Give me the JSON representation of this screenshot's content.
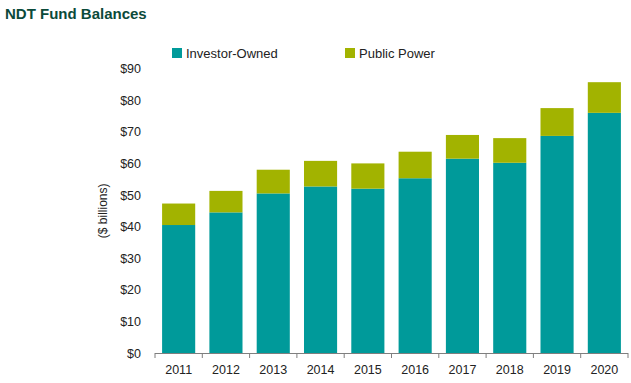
{
  "chart_data": {
    "type": "bar",
    "title": "NDT Fund Balances",
    "y_label": "($ billions)",
    "stacked": true,
    "legend": "top",
    "grid": false,
    "categories": [
      "2011",
      "2012",
      "2013",
      "2014",
      "2015",
      "2016",
      "2017",
      "2018",
      "2019",
      "2020"
    ],
    "series": [
      {
        "name": "Investor-Owned",
        "color": "#009a9a",
        "values": [
          40.5,
          44.5,
          50.5,
          52.7,
          52,
          55.3,
          61.5,
          60.2,
          68.7,
          76
        ]
      },
      {
        "name": "Public Power",
        "color": "#a2b300",
        "values": [
          6.8,
          6.8,
          7.5,
          8.1,
          8,
          8.4,
          7.5,
          7.8,
          8.8,
          9.7
        ]
      }
    ],
    "ylim": [
      0,
      90
    ],
    "yticks": [
      {
        "value": 0,
        "label": "$0"
      },
      {
        "value": 10,
        "label": "$10"
      },
      {
        "value": 20,
        "label": "$20"
      },
      {
        "value": 30,
        "label": "$30"
      },
      {
        "value": 40,
        "label": "$40"
      },
      {
        "value": 50,
        "label": "$50"
      },
      {
        "value": 60,
        "label": "$60"
      },
      {
        "value": 70,
        "label": "$70"
      },
      {
        "value": 80,
        "label": "$80"
      },
      {
        "value": 90,
        "label": "$90"
      }
    ]
  }
}
